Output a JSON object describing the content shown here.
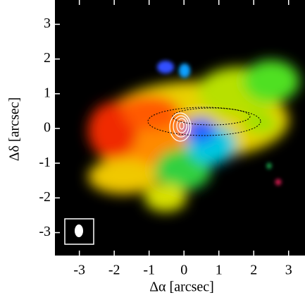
{
  "chart_data": {
    "type": "image",
    "xlabel": "Δα [arcsec]",
    "ylabel": "Δδ [arcsec]",
    "xlim": [
      -3.7,
      3.47
    ],
    "ylim": [
      -3.66,
      3.7
    ],
    "xticks": [
      -3,
      -2,
      -1,
      0,
      1,
      2,
      3
    ],
    "yticks": [
      -3,
      -2,
      -1,
      0,
      1,
      2,
      3
    ]
  }
}
